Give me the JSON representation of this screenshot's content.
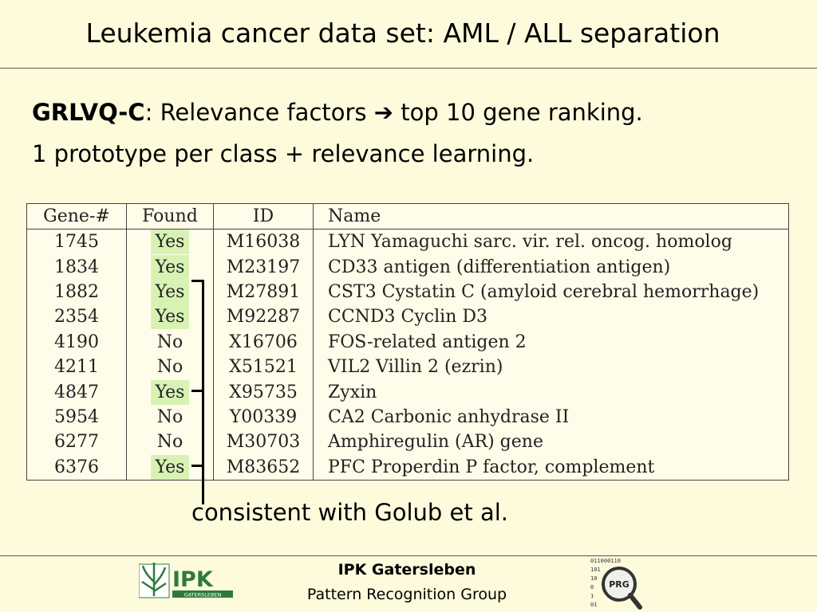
{
  "title": "Leukemia cancer data set: AML / ALL separation",
  "intro": {
    "method": "GRLVQ-C",
    "line1_rest_a": ": Relevance factors ",
    "arrow": "➔",
    "line1_rest_b": " top 10 gene ranking.",
    "line2": "1 prototype per class + relevance learning."
  },
  "table": {
    "headers": [
      "Gene-#",
      "Found",
      "ID",
      "Name"
    ],
    "rows": [
      {
        "gene": "1745",
        "found": "Yes",
        "id": "M16038",
        "name": "LYN Yamaguchi sarc. vir. rel. oncog. homolog"
      },
      {
        "gene": "1834",
        "found": "Yes",
        "id": "M23197",
        "name": "CD33 antigen (differentiation antigen)"
      },
      {
        "gene": "1882",
        "found": "Yes",
        "id": "M27891",
        "name": "CST3 Cystatin C (amyloid cerebral hemorrhage)"
      },
      {
        "gene": "2354",
        "found": "Yes",
        "id": "M92287",
        "name": "CCND3 Cyclin D3"
      },
      {
        "gene": "4190",
        "found": "No",
        "id": "X16706",
        "name": "FOS-related antigen 2"
      },
      {
        "gene": "4211",
        "found": "No",
        "id": "X51521",
        "name": "VIL2 Villin 2 (ezrin)"
      },
      {
        "gene": "4847",
        "found": "Yes",
        "id": "X95735",
        "name": "Zyxin"
      },
      {
        "gene": "5954",
        "found": "No",
        "id": "Y00339",
        "name": "CA2 Carbonic anhydrase II"
      },
      {
        "gene": "6277",
        "found": "No",
        "id": "M30703",
        "name": "Amphiregulin (AR) gene"
      },
      {
        "gene": "6376",
        "found": "Yes",
        "id": "M83652",
        "name": "PFC Properdin P factor, complement"
      }
    ]
  },
  "annotation": "consistent with Golub et al.",
  "footer": {
    "org": "IPK Gatersleben",
    "group": "Pattern Recognition Group",
    "ipk_logo_text": "IPK",
    "ipk_logo_sub": "GATERSLEBEN",
    "prg_logo_text": "PRG",
    "prg_binary": [
      "011000110",
      "101",
      "10",
      "0",
      "1",
      "01"
    ]
  },
  "colors": {
    "background": "#fdfbdc",
    "found_highlight": "#d8f2b4",
    "logo_green": "#2f7a3a"
  }
}
